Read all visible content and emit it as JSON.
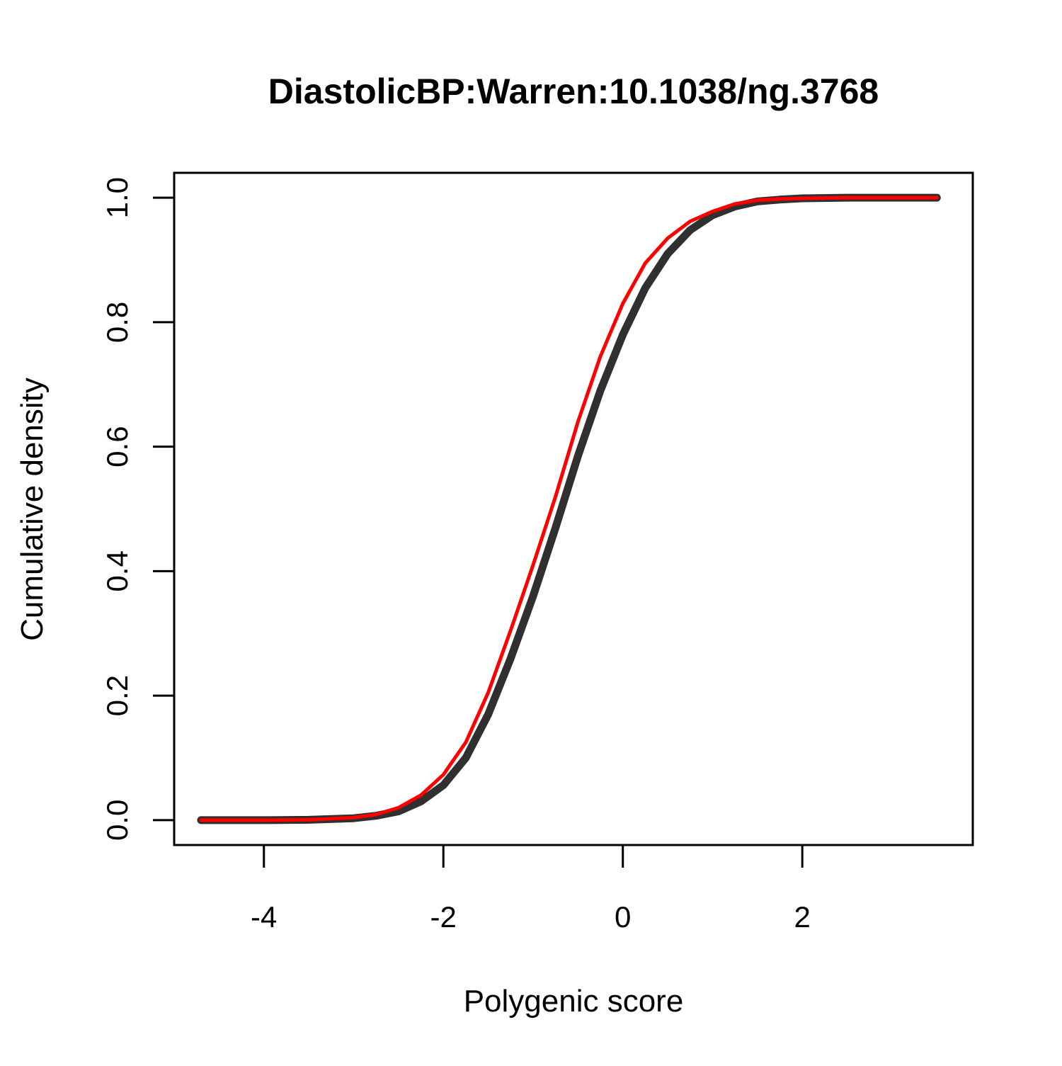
{
  "chart_data": {
    "type": "line",
    "title": "DiastolicBP:Warren:10.1038/ng.3768",
    "xlabel": "Polygenic score",
    "ylabel": "Cumulative density",
    "xlim": [
      -5.0,
      3.9
    ],
    "ylim": [
      -0.04,
      1.04
    ],
    "x_ticks": [
      -4,
      -2,
      0,
      2
    ],
    "x_tick_labels": [
      "-4",
      "-2",
      "0",
      "2"
    ],
    "y_ticks": [
      0.0,
      0.2,
      0.4,
      0.6,
      0.8,
      1.0
    ],
    "y_tick_labels": [
      "0.0",
      "0.2",
      "0.4",
      "0.6",
      "0.8",
      "1.0"
    ],
    "grid": false,
    "legend": "none",
    "series": [
      {
        "color": "#1a1a1a",
        "style": "thick band of overlapping gray/black cumulative curves",
        "x": [
          -4.7,
          -4.0,
          -3.5,
          -3.0,
          -2.75,
          -2.5,
          -2.25,
          -2.0,
          -1.75,
          -1.5,
          -1.25,
          -1.0,
          -0.75,
          -0.5,
          -0.25,
          0.0,
          0.25,
          0.5,
          0.75,
          1.0,
          1.25,
          1.5,
          1.75,
          2.0,
          2.5,
          3.0,
          3.5
        ],
        "y": [
          0.0,
          0.0,
          0.0005,
          0.003,
          0.007,
          0.014,
          0.03,
          0.056,
          0.1,
          0.17,
          0.26,
          0.36,
          0.47,
          0.585,
          0.69,
          0.78,
          0.855,
          0.91,
          0.948,
          0.972,
          0.986,
          0.994,
          0.997,
          0.999,
          1.0,
          1.0,
          1.0
        ]
      },
      {
        "color": "#ff0000",
        "style": "red cumulative curve",
        "x": [
          -4.7,
          -4.0,
          -3.5,
          -3.0,
          -2.75,
          -2.5,
          -2.25,
          -2.0,
          -1.75,
          -1.5,
          -1.25,
          -1.0,
          -0.75,
          -0.5,
          -0.25,
          0.0,
          0.25,
          0.5,
          0.75,
          1.0,
          1.25,
          1.5,
          1.75,
          2.0,
          2.5,
          3.0,
          3.5
        ],
        "y": [
          0.0,
          0.0,
          0.0005,
          0.004,
          0.009,
          0.02,
          0.04,
          0.073,
          0.125,
          0.205,
          0.305,
          0.41,
          0.52,
          0.64,
          0.745,
          0.83,
          0.895,
          0.935,
          0.962,
          0.978,
          0.99,
          0.996,
          0.998,
          0.999,
          1.0,
          1.0,
          1.0
        ]
      }
    ]
  }
}
